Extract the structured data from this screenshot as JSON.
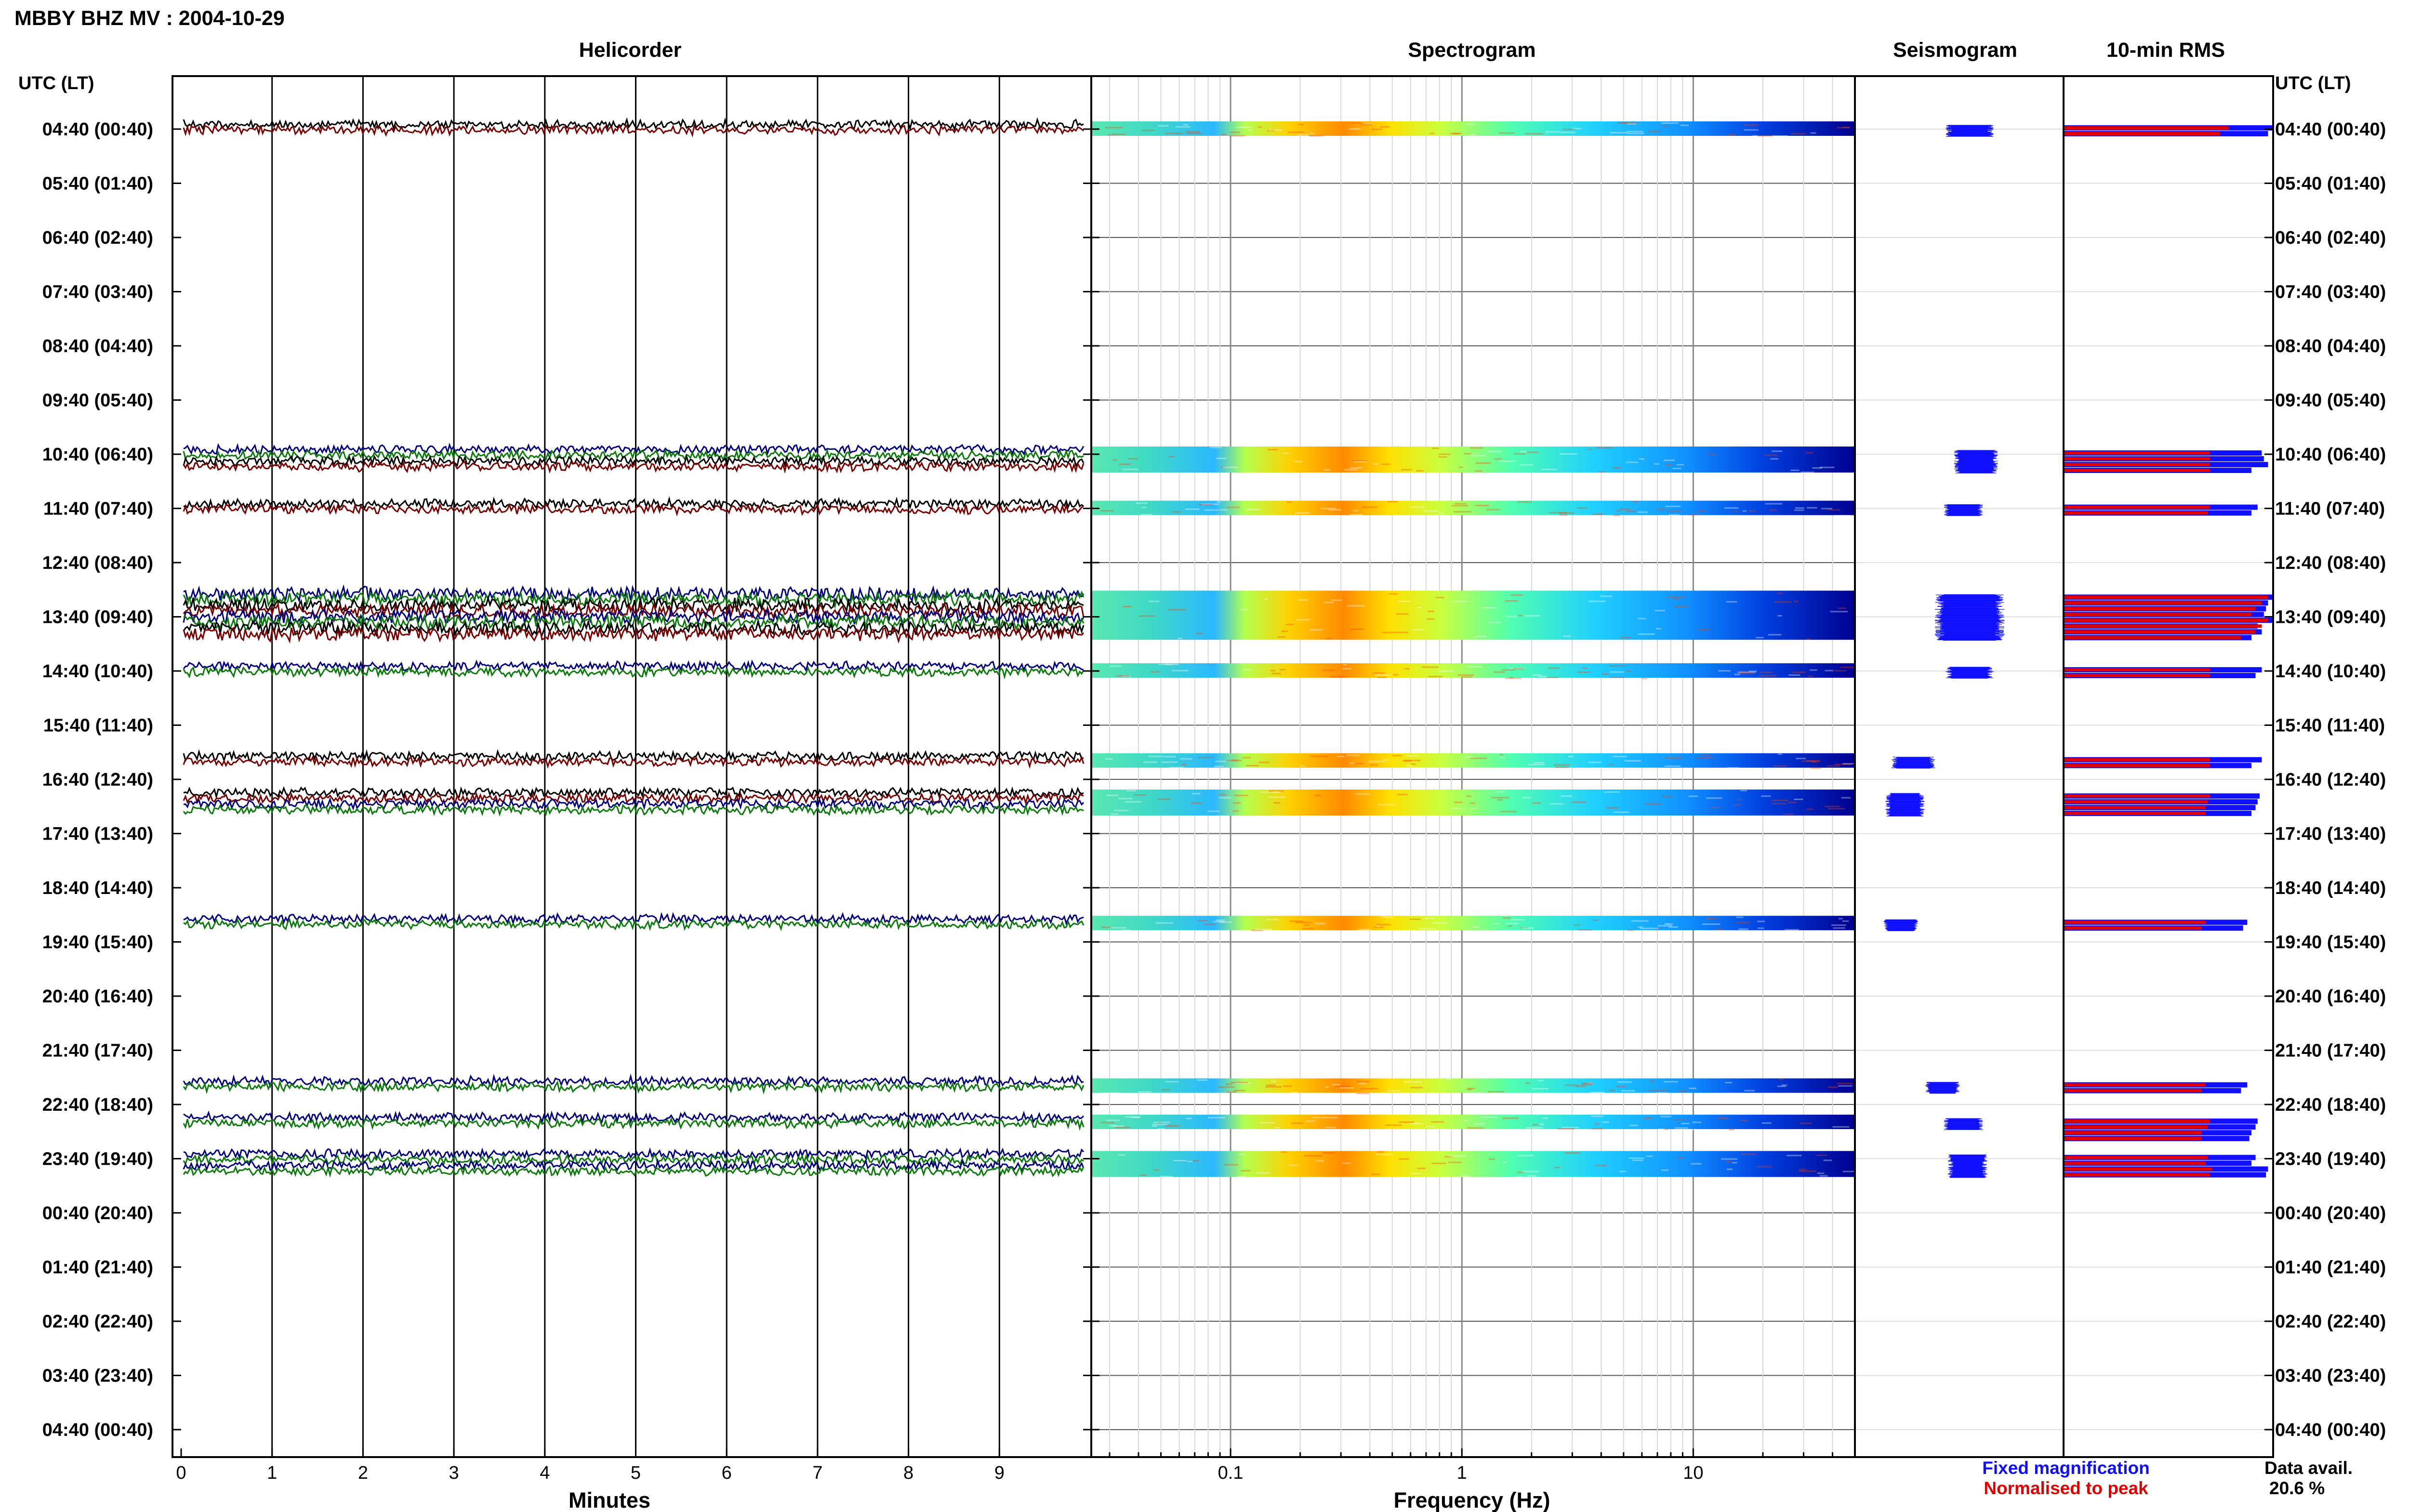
{
  "chart_data": {
    "type": "heatmap",
    "title": "MBBY BHZ MV : 2004-10-29",
    "panels": {
      "helicorder": "Helicorder",
      "spectrogram": "Spectrogram",
      "seismogram": "Seismogram",
      "rms": "10-min RMS"
    },
    "row_axis_label_left": "UTC (LT)",
    "row_axis_label_right": "UTC (LT)",
    "row_labels": [
      "04:40 (00:40)",
      "05:40 (01:40)",
      "06:40 (02:40)",
      "07:40 (03:40)",
      "08:40 (04:40)",
      "09:40 (05:40)",
      "10:40 (06:40)",
      "11:40 (07:40)",
      "12:40 (08:40)",
      "13:40 (09:40)",
      "14:40 (10:40)",
      "15:40 (11:40)",
      "16:40 (12:40)",
      "17:40 (13:40)",
      "18:40 (14:40)",
      "19:40 (15:40)",
      "20:40 (16:40)",
      "21:40 (17:40)",
      "22:40 (18:40)",
      "23:40 (19:40)",
      "00:40 (20:40)",
      "01:40 (21:40)",
      "02:40 (22:40)",
      "03:40 (23:40)",
      "04:40 (00:40)"
    ],
    "helicorder_xlabel": "Minutes",
    "helicorder_xticks": [
      "0",
      "1",
      "2",
      "3",
      "4",
      "5",
      "6",
      "7",
      "8",
      "9"
    ],
    "spectrogram_xlabel": "Frequency (Hz)",
    "spectrogram_xticks": [
      "0.1",
      "1",
      "10"
    ],
    "spectrogram_xscale": "log",
    "legend": {
      "fixed": "Fixed magnification",
      "fixed_color": "#1010ff",
      "normalised": "Normalised to peak",
      "normalised_color": "#e00000"
    },
    "data_availability": {
      "label": "Data avail.",
      "value": "20.6 %"
    },
    "trace_colors": {
      "black": "#000000",
      "red": "#7a0000",
      "blue": "#000080",
      "green": "#0a7a0a"
    },
    "traces": [
      {
        "hour_index": 0,
        "lines": [
          "black",
          "red"
        ]
      },
      {
        "hour_index": 6,
        "lines": [
          "blue",
          "green",
          "black",
          "red"
        ]
      },
      {
        "hour_index": 7,
        "lines": [
          "black",
          "red"
        ]
      },
      {
        "hour_index": 8,
        "lines": [
          "blue",
          "green",
          "black",
          "red",
          "blue",
          "green",
          "black",
          "red"
        ],
        "start_frac": 0.66
      },
      {
        "hour_index": 10,
        "lines": [
          "blue",
          "green"
        ]
      },
      {
        "hour_index": 11,
        "lines": [
          "black",
          "red"
        ],
        "start_frac": 0.66
      },
      {
        "hour_index": 12,
        "lines": [
          "black",
          "red",
          "blue",
          "green"
        ],
        "start_frac": 0.33
      },
      {
        "hour_index": 14,
        "lines": [
          "blue",
          "green"
        ],
        "start_frac": 0.66
      },
      {
        "hour_index": 17,
        "lines": [
          "blue",
          "green"
        ],
        "start_frac": 0.66
      },
      {
        "hour_index": 18,
        "lines": [
          "blue",
          "green"
        ],
        "start_frac": 0.33
      },
      {
        "hour_index": 19,
        "lines": [
          "blue",
          "green",
          "blue",
          "green"
        ]
      }
    ],
    "seismogram_blocks": [
      {
        "hour_index": 0,
        "rows": 2,
        "center_frac": 0.55,
        "width_frac": 0.22
      },
      {
        "hour_index": 6,
        "rows": 4,
        "center_frac": 0.58,
        "width_frac": 0.2
      },
      {
        "hour_index": 7,
        "rows": 2,
        "center_frac": 0.52,
        "width_frac": 0.18
      },
      {
        "hour_index": 8,
        "rows": 8,
        "center_frac": 0.55,
        "width_frac": 0.32,
        "start_frac": 0.66
      },
      {
        "hour_index": 10,
        "rows": 2,
        "center_frac": 0.55,
        "width_frac": 0.22
      },
      {
        "hour_index": 11,
        "rows": 2,
        "center_frac": 0.28,
        "width_frac": 0.2,
        "start_frac": 0.66
      },
      {
        "hour_index": 12,
        "rows": 4,
        "center_frac": 0.24,
        "width_frac": 0.18,
        "start_frac": 0.33
      },
      {
        "hour_index": 14,
        "rows": 2,
        "center_frac": 0.22,
        "width_frac": 0.16,
        "start_frac": 0.66
      },
      {
        "hour_index": 17,
        "rows": 2,
        "center_frac": 0.42,
        "width_frac": 0.16,
        "start_frac": 0.66
      },
      {
        "hour_index": 18,
        "rows": 2,
        "center_frac": 0.52,
        "width_frac": 0.18,
        "start_frac": 0.33
      },
      {
        "hour_index": 19,
        "rows": 4,
        "center_frac": 0.54,
        "width_frac": 0.18
      }
    ],
    "rms_bars": [
      {
        "hour_index": 0,
        "fixed": [
          1.0,
          0.98
        ],
        "normalised": [
          0.79,
          0.75
        ]
      },
      {
        "hour_index": 6,
        "fixed": [
          0.95,
          0.96,
          0.98,
          0.9
        ],
        "normalised": [
          0.7,
          0.7,
          0.7,
          0.7
        ]
      },
      {
        "hour_index": 7,
        "fixed": [
          0.93,
          0.9
        ],
        "normalised": [
          0.7,
          0.69
        ]
      },
      {
        "hour_index": 8,
        "fixed": [
          1.0,
          0.98,
          0.97,
          0.96,
          1.0,
          0.93,
          0.95,
          0.9
        ],
        "normalised": [
          0.98,
          0.95,
          0.92,
          0.9,
          0.98,
          0.95,
          0.92,
          0.85
        ],
        "start_frac": 0.66
      },
      {
        "hour_index": 10,
        "fixed": [
          0.95,
          0.92
        ],
        "normalised": [
          0.7,
          0.7
        ]
      },
      {
        "hour_index": 11,
        "fixed": [
          0.95,
          0.9
        ],
        "normalised": [
          0.7,
          0.7
        ],
        "start_frac": 0.66
      },
      {
        "hour_index": 12,
        "fixed": [
          0.94,
          0.93,
          0.92,
          0.9
        ],
        "normalised": [
          0.7,
          0.69,
          0.68,
          0.68
        ],
        "start_frac": 0.33
      },
      {
        "hour_index": 14,
        "fixed": [
          0.88,
          0.86
        ],
        "normalised": [
          0.68,
          0.66
        ],
        "start_frac": 0.66
      },
      {
        "hour_index": 17,
        "fixed": [
          0.88,
          0.85
        ],
        "normalised": [
          0.68,
          0.66
        ],
        "start_frac": 0.66
      },
      {
        "hour_index": 18,
        "fixed": [
          0.93,
          0.92,
          0.9,
          0.89
        ],
        "normalised": [
          0.7,
          0.69,
          0.66,
          0.66
        ],
        "start_frac": 0.33
      },
      {
        "hour_index": 19,
        "fixed": [
          0.92,
          0.9,
          0.98,
          0.97
        ],
        "normalised": [
          0.69,
          0.68,
          0.71,
          0.7
        ]
      }
    ]
  }
}
